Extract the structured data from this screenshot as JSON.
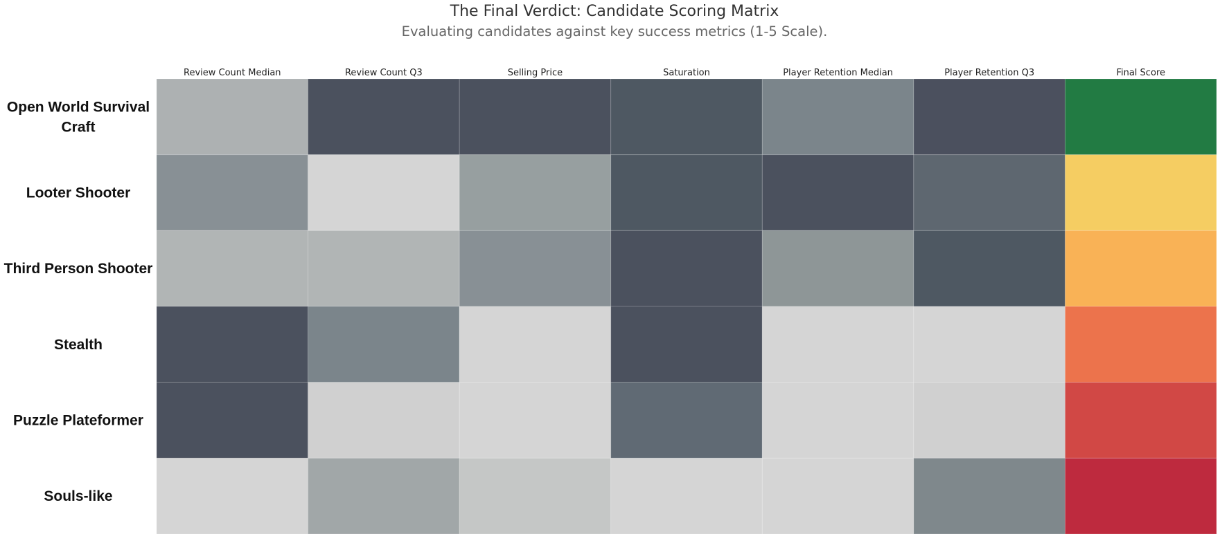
{
  "chart_data": {
    "type": "heatmap",
    "title": "The Final Verdict: Candidate Scoring Matrix",
    "subtitle": "Evaluating candidates against key success metrics (1-5 Scale).",
    "columns": [
      "Review Count Median",
      "Review Count Q3",
      "Selling Price",
      "Saturation",
      "Player Retention Median",
      "Player Retention Q3",
      "Final Score"
    ],
    "rows": [
      {
        "label": "Open World Survival Craft",
        "cells": [
          "#adb1b2",
          "#4b515e",
          "#4b515e",
          "#4e5862",
          "#7b858b",
          "#4b505e",
          "#227b43"
        ]
      },
      {
        "label": "Looter Shooter",
        "cells": [
          "#889095",
          "#d5d5d5",
          "#979fa0",
          "#4e5862",
          "#4b515e",
          "#5e6770",
          "#f5cd62"
        ]
      },
      {
        "label": "Third Person Shooter",
        "cells": [
          "#b1b5b5",
          "#b1b5b5",
          "#889095",
          "#4b515e",
          "#8e9697",
          "#4e5862",
          "#f9b256"
        ]
      },
      {
        "label": "Stealth",
        "cells": [
          "#4b515e",
          "#7b858b",
          "#d5d5d5",
          "#4b515e",
          "#d5d5d5",
          "#d5d5d5",
          "#ec734c"
        ]
      },
      {
        "label": "Puzzle Plateformer",
        "cells": [
          "#4b515e",
          "#d0d0d0",
          "#d5d5d5",
          "#606a74",
          "#d5d5d5",
          "#d0d0d0",
          "#d14845"
        ]
      },
      {
        "label": "Souls-like",
        "cells": [
          "#d5d5d5",
          "#a1a7a8",
          "#c5c7c6",
          "#d5d5d5",
          "#d5d5d5",
          "#7f888c",
          "#be2a3e"
        ]
      }
    ]
  }
}
